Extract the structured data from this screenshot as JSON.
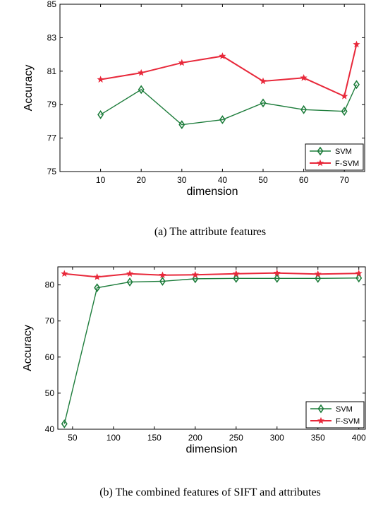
{
  "chart_data": [
    {
      "type": "line",
      "caption": "(a) The attribute features",
      "xlabel": "dimension",
      "ylabel": "Accuracy",
      "xlim": [
        0,
        75
      ],
      "ylim": [
        75,
        85
      ],
      "xticks": [
        10,
        20,
        30,
        40,
        50,
        60,
        70
      ],
      "yticks": [
        75,
        77,
        79,
        81,
        83,
        85
      ],
      "grid": false,
      "legend": "bottom-right",
      "series": [
        {
          "name": "SVM",
          "color": "#1e7d3c",
          "marker": "diamond",
          "x": [
            10,
            20,
            30,
            40,
            50,
            60,
            70,
            73
          ],
          "y": [
            78.4,
            79.9,
            77.8,
            78.1,
            79.1,
            78.7,
            78.6,
            80.2
          ]
        },
        {
          "name": "F-SVM",
          "color": "#e8283a",
          "marker": "star",
          "x": [
            10,
            20,
            30,
            40,
            50,
            60,
            70,
            73
          ],
          "y": [
            80.5,
            80.9,
            81.5,
            81.9,
            80.4,
            80.6,
            79.5,
            82.6
          ]
        }
      ]
    },
    {
      "type": "line",
      "caption": "(b) The combined features of SIFT and attributes",
      "xlabel": "dimension",
      "ylabel": "Accuracy",
      "xlim": [
        32,
        408
      ],
      "ylim": [
        40,
        85
      ],
      "xticks": [
        50,
        100,
        150,
        200,
        250,
        300,
        350,
        400
      ],
      "yticks": [
        40,
        50,
        60,
        70,
        80
      ],
      "grid": false,
      "legend": "bottom-right",
      "series": [
        {
          "name": "SVM",
          "color": "#1e7d3c",
          "marker": "diamond",
          "x": [
            40,
            80,
            120,
            160,
            200,
            250,
            300,
            350,
            400
          ],
          "y": [
            41.5,
            79.2,
            80.8,
            81.0,
            81.7,
            81.8,
            81.8,
            81.8,
            81.9
          ]
        },
        {
          "name": "F-SVM",
          "color": "#e8283a",
          "marker": "star",
          "x": [
            40,
            80,
            120,
            160,
            200,
            250,
            300,
            350,
            400
          ],
          "y": [
            83.1,
            82.2,
            83.1,
            82.7,
            82.8,
            83.1,
            83.3,
            83.0,
            83.2
          ]
        }
      ]
    }
  ]
}
